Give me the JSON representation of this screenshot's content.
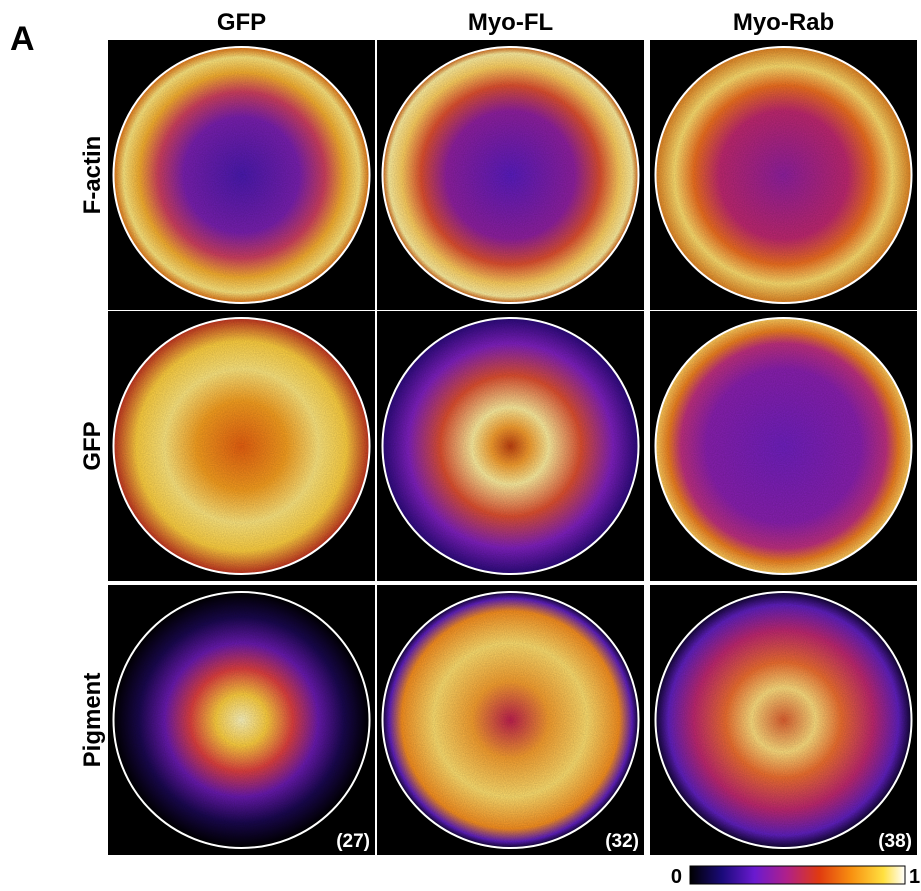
{
  "panel_label": "A",
  "columns": [
    "GFP",
    "Myo-FL",
    "Myo-Rab"
  ],
  "rows": [
    "F-actin",
    "GFP",
    "Pigment"
  ],
  "counts": [
    "(27)",
    "(32)",
    "(38)"
  ],
  "colorbar": {
    "min": 0,
    "max": 1
  }
}
